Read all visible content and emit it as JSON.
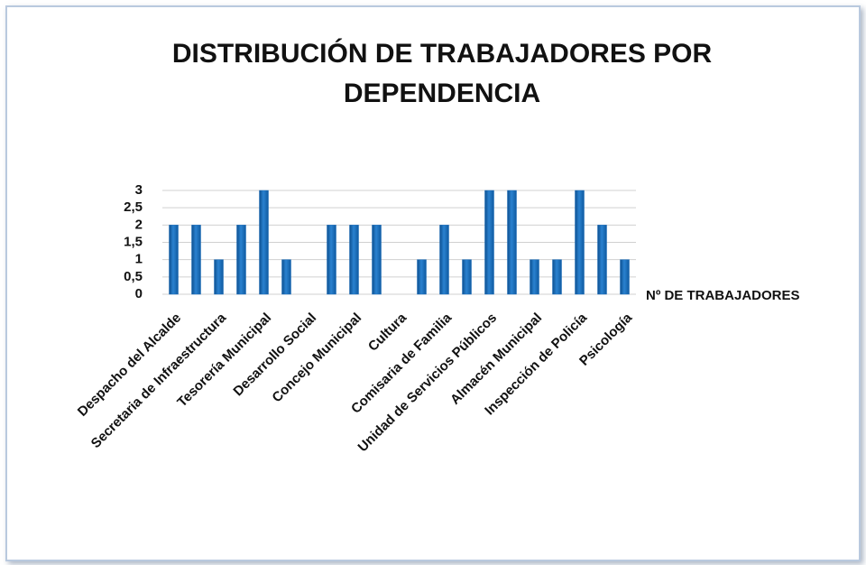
{
  "chart_data": {
    "type": "bar",
    "title": "DISTRIBUCIÓN DE TRABAJADORES POR DEPENDENCIA",
    "categories": [
      "Despacho del Alcalde",
      null,
      "Secretaria de Infraestructura",
      null,
      "Tesorería Municipal",
      null,
      "Desarrollo Social",
      null,
      "Concejo Municipal",
      null,
      "Cultura",
      null,
      "Comisaria de Familia",
      null,
      "Unidad de Servicios Públicos",
      null,
      "Almacén Municipal",
      null,
      "Inspección de Policía",
      null,
      "Psicología"
    ],
    "series": [
      {
        "name": "Nº DE TRABAJADORES",
        "color": "#1f6fba",
        "values": [
          2,
          2,
          1,
          2,
          3,
          1,
          0,
          2,
          2,
          2,
          0,
          1,
          2,
          1,
          3,
          3,
          1,
          1,
          3,
          2,
          1
        ]
      }
    ],
    "ylim": [
      0,
      3
    ],
    "yticks": [
      0,
      {
        "value": 0.5,
        "label": "0,5"
      },
      1,
      {
        "value": 1.5,
        "label": "1,5"
      },
      2,
      {
        "value": 2.5,
        "label": "2,5"
      },
      3
    ],
    "grid": true,
    "legend": "right"
  }
}
